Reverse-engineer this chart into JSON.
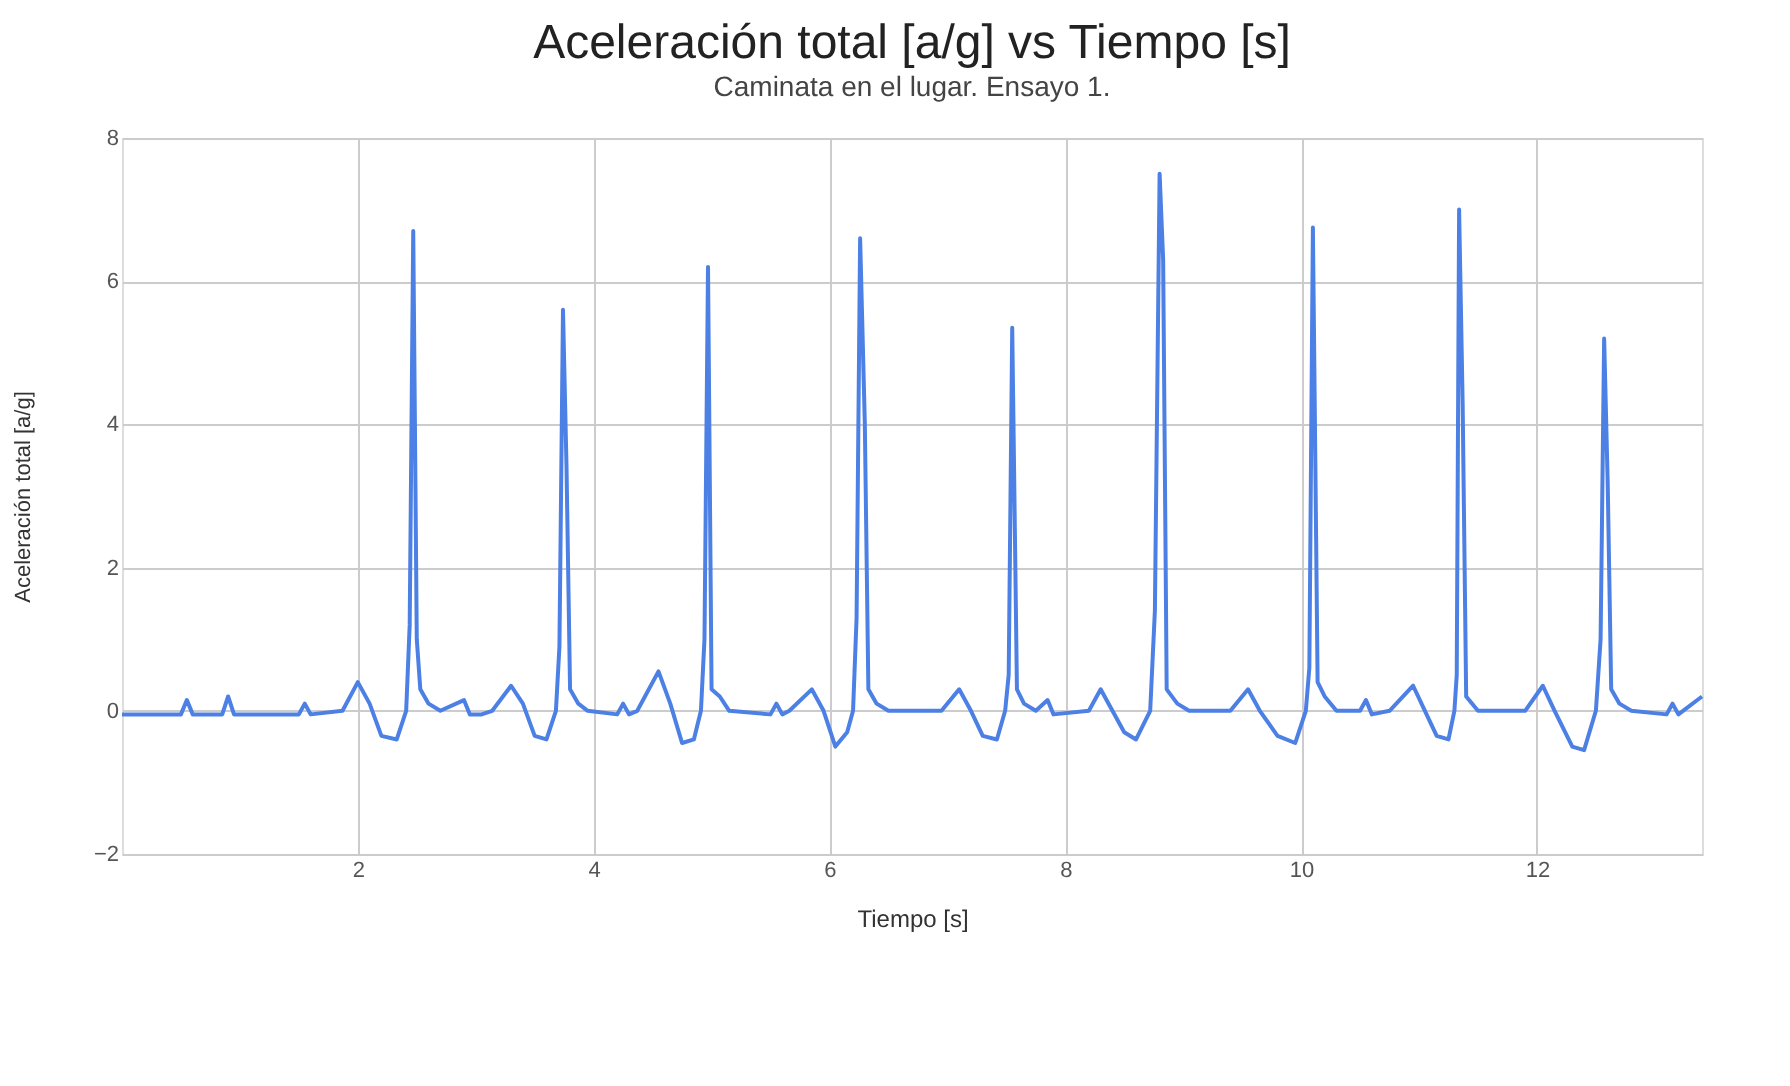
{
  "chart_data": {
    "type": "line",
    "title": "Aceleración total [a/g] vs Tiempo [s]",
    "subtitle": "Caminata en el lugar. Ensayo 1.",
    "xlabel": "Tiempo [s]",
    "ylabel": "Aceleración total [a/g]",
    "x": [
      0,
      0.5,
      0.55,
      0.6,
      0.85,
      0.9,
      0.95,
      1.5,
      1.55,
      1.6,
      1.87,
      2.0,
      2.1,
      2.2,
      2.33,
      2.41,
      2.44,
      2.47,
      2.5,
      2.53,
      2.6,
      2.7,
      2.9,
      2.95,
      3.05,
      3.14,
      3.3,
      3.4,
      3.5,
      3.6,
      3.68,
      3.71,
      3.74,
      3.77,
      3.8,
      3.87,
      3.95,
      4.2,
      4.25,
      4.3,
      4.37,
      4.55,
      4.65,
      4.75,
      4.85,
      4.91,
      4.94,
      4.97,
      5.0,
      5.07,
      5.15,
      5.5,
      5.55,
      5.6,
      5.66,
      5.85,
      5.95,
      6.05,
      6.15,
      6.2,
      6.23,
      6.26,
      6.3,
      6.33,
      6.4,
      6.5,
      6.95,
      7.1,
      7.2,
      7.3,
      7.42,
      7.49,
      7.52,
      7.55,
      7.59,
      7.65,
      7.75,
      7.85,
      7.9,
      8.2,
      8.3,
      8.4,
      8.5,
      8.6,
      8.72,
      8.76,
      8.8,
      8.83,
      8.86,
      8.95,
      9.05,
      9.4,
      9.55,
      9.65,
      9.8,
      9.95,
      10.04,
      10.07,
      10.1,
      10.14,
      10.2,
      10.3,
      10.5,
      10.55,
      10.6,
      10.75,
      10.95,
      11.05,
      11.15,
      11.25,
      11.3,
      11.32,
      11.34,
      11.37,
      11.4,
      11.5,
      11.9,
      12.05,
      12.15,
      12.3,
      12.4,
      12.5,
      12.54,
      12.57,
      12.6,
      12.63,
      12.7,
      12.8,
      13.1,
      13.15,
      13.2,
      13.4
    ],
    "series": [
      {
        "color": "#4d80e4",
        "values": [
          -0.05,
          -0.05,
          0.15,
          -0.05,
          -0.05,
          0.2,
          -0.05,
          -0.05,
          0.1,
          -0.05,
          0.0,
          0.4,
          0.1,
          -0.35,
          -0.4,
          0.0,
          1.2,
          6.7,
          1.0,
          0.3,
          0.1,
          0.0,
          0.15,
          -0.05,
          -0.05,
          0.0,
          0.35,
          0.1,
          -0.35,
          -0.4,
          0.0,
          0.9,
          5.6,
          3.4,
          0.3,
          0.1,
          0.0,
          -0.05,
          0.1,
          -0.05,
          0.0,
          0.55,
          0.1,
          -0.45,
          -0.4,
          0.0,
          1.0,
          6.2,
          0.3,
          0.2,
          0.0,
          -0.05,
          0.1,
          -0.05,
          0.0,
          0.3,
          0.0,
          -0.5,
          -0.3,
          0.0,
          1.3,
          6.6,
          4.0,
          0.3,
          0.1,
          0.0,
          0.0,
          0.3,
          0.0,
          -0.35,
          -0.4,
          0.0,
          0.5,
          5.35,
          0.3,
          0.1,
          0.0,
          0.15,
          -0.05,
          0.0,
          0.3,
          0.0,
          -0.3,
          -0.4,
          0.0,
          1.4,
          7.5,
          6.3,
          0.3,
          0.1,
          0.0,
          0.0,
          0.3,
          0.0,
          -0.35,
          -0.45,
          0.0,
          0.6,
          6.75,
          0.4,
          0.2,
          0.0,
          0.0,
          0.15,
          -0.05,
          0.0,
          0.35,
          0.0,
          -0.35,
          -0.4,
          0.0,
          0.5,
          7.0,
          4.3,
          0.2,
          0.0,
          0.0,
          0.35,
          0.0,
          -0.5,
          -0.55,
          0.0,
          1.0,
          5.2,
          3.2,
          0.3,
          0.1,
          0.0,
          -0.05,
          0.1,
          -0.05,
          0.2
        ]
      }
    ],
    "xlim": [
      0,
      13.4
    ],
    "ylim": [
      -2,
      8
    ],
    "xticks": [
      2,
      4,
      6,
      8,
      10,
      12
    ],
    "yticks": [
      -2,
      0,
      2,
      4,
      6,
      8
    ],
    "grid": true,
    "marker": "none",
    "line_style": "solid"
  }
}
